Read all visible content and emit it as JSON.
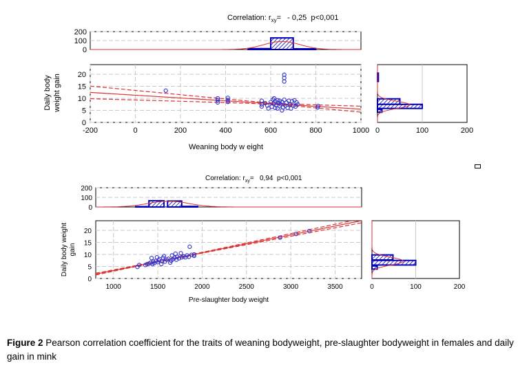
{
  "chart_data": [
    {
      "type": "scatter",
      "title": {
        "prefix": "Correlation: r",
        "sub": "xy",
        "suffix": "=   - 0,25  p<0,001"
      },
      "xlabel": "Weaning body w eight",
      "ylabel": [
        "Daily body",
        "weight gain"
      ],
      "xlim": [
        -200,
        1000
      ],
      "ylim": [
        0,
        24
      ],
      "xticks": [
        "-200",
        "0",
        "200",
        "400",
        "600",
        "800",
        "1000"
      ],
      "xtick_values": [
        -200,
        0,
        200,
        400,
        600,
        800,
        1000
      ],
      "yticks": [
        "0",
        "5",
        "10",
        "15",
        "20"
      ],
      "ytick_values": [
        0,
        5,
        10,
        15,
        20
      ],
      "grid": true,
      "regression": {
        "intercept": 11.3,
        "slope": -0.0058,
        "ci_center_x": 620,
        "ci_min": 0.3,
        "ci_k": 0.00317
      },
      "points": [
        [
          135,
          13.2
        ],
        [
          365,
          10
        ],
        [
          365,
          9.2
        ],
        [
          365,
          8.3
        ],
        [
          410,
          10.2
        ],
        [
          410,
          9.3
        ],
        [
          410,
          8.5
        ],
        [
          560,
          9
        ],
        [
          560,
          7.5
        ],
        [
          560,
          6.6
        ],
        [
          575,
          8
        ],
        [
          585,
          7
        ],
        [
          590,
          5.8
        ],
        [
          600,
          8.4
        ],
        [
          605,
          6.5
        ],
        [
          610,
          9.5
        ],
        [
          615,
          10
        ],
        [
          615,
          7.8
        ],
        [
          620,
          6
        ],
        [
          620,
          8.8
        ],
        [
          625,
          7.2
        ],
        [
          630,
          9.2
        ],
        [
          630,
          5.8
        ],
        [
          635,
          8
        ],
        [
          640,
          6.8
        ],
        [
          640,
          9
        ],
        [
          645,
          7.5
        ],
        [
          650,
          5
        ],
        [
          650,
          8.5
        ],
        [
          655,
          6.2
        ],
        [
          660,
          9.4
        ],
        [
          660,
          17
        ],
        [
          660,
          18.5
        ],
        [
          660,
          19.8
        ],
        [
          665,
          7
        ],
        [
          670,
          8.2
        ],
        [
          675,
          6
        ],
        [
          680,
          9
        ],
        [
          685,
          7.5
        ],
        [
          690,
          5.8
        ],
        [
          695,
          8.8
        ],
        [
          700,
          7
        ],
        [
          705,
          9.2
        ],
        [
          710,
          6.6
        ],
        [
          715,
          8.3
        ],
        [
          720,
          7.5
        ],
        [
          808,
          6.2
        ],
        [
          810,
          6.8
        ]
      ],
      "top_hist": {
        "ylim": [
          0,
          200
        ],
        "yticks": [
          "0",
          "100",
          "200"
        ],
        "ytick_values": [
          0,
          100,
          200
        ],
        "bins": [
          [
            500,
            600,
            10
          ],
          [
            600,
            700,
            130
          ],
          [
            700,
            800,
            8
          ]
        ],
        "curve": {
          "peak": 90,
          "mean": 650,
          "sd": 80
        }
      },
      "right_hist": {
        "xlim": [
          0,
          200
        ],
        "xticks": [
          "0",
          "100",
          "200"
        ],
        "xtick_values": [
          0,
          100,
          200
        ],
        "bins": [
          [
            17,
            20.5,
            2
          ],
          [
            7.5,
            9.8,
            50
          ],
          [
            5.8,
            7.5,
            100
          ],
          [
            4.2,
            5.4,
            10
          ]
        ],
        "curve": {
          "peak": 72,
          "mean": 7.3,
          "sd": 1.5
        }
      }
    },
    {
      "type": "scatter",
      "title": {
        "prefix": "Correlation: r",
        "sub": "xy",
        "suffix": "=   0,94  p<0,001"
      },
      "xlabel": "Pre-slaughter body weight",
      "ylabel": [
        "Daily body weight",
        "gain"
      ],
      "xlim": [
        800,
        3800
      ],
      "ylim": [
        0,
        24
      ],
      "xticks": [
        "1000",
        "1500",
        "2000",
        "2500",
        "3000",
        "3500"
      ],
      "xtick_values": [
        1000,
        1500,
        2000,
        2500,
        3000,
        3500
      ],
      "yticks": [
        "0",
        "5",
        "10",
        "15",
        "20"
      ],
      "ytick_values": [
        0,
        5,
        10,
        15,
        20
      ],
      "grid": true,
      "regression": {
        "intercept": -4.1,
        "slope": 0.0074,
        "ci_center_x": 1650,
        "ci_min": 0.12,
        "ci_k": 0.0004
      },
      "points": [
        [
          1270,
          4.8
        ],
        [
          1290,
          5.6
        ],
        [
          1360,
          5.6
        ],
        [
          1380,
          6
        ],
        [
          1400,
          6.2
        ],
        [
          1420,
          6.6
        ],
        [
          1430,
          8.5
        ],
        [
          1440,
          6
        ],
        [
          1450,
          7
        ],
        [
          1460,
          6.4
        ],
        [
          1480,
          7.3
        ],
        [
          1490,
          8.8
        ],
        [
          1500,
          6.8
        ],
        [
          1510,
          7.6
        ],
        [
          1520,
          8.1
        ],
        [
          1540,
          6
        ],
        [
          1550,
          7.2
        ],
        [
          1560,
          8.6
        ],
        [
          1570,
          9.3
        ],
        [
          1580,
          7
        ],
        [
          1600,
          7.8
        ],
        [
          1620,
          8.2
        ],
        [
          1640,
          6.6
        ],
        [
          1650,
          7.4
        ],
        [
          1660,
          9.6
        ],
        [
          1670,
          8
        ],
        [
          1690,
          8.6
        ],
        [
          1700,
          10.3
        ],
        [
          1710,
          7.8
        ],
        [
          1720,
          9
        ],
        [
          1740,
          8.4
        ],
        [
          1760,
          10.5
        ],
        [
          1770,
          8.8
        ],
        [
          1790,
          9.2
        ],
        [
          1810,
          8.8
        ],
        [
          1830,
          9.6
        ],
        [
          1850,
          9
        ],
        [
          1860,
          13.2
        ],
        [
          1880,
          9.8
        ],
        [
          1910,
          9.4
        ],
        [
          1910,
          10
        ],
        [
          2880,
          17
        ],
        [
          3060,
          18.5
        ],
        [
          3210,
          19.7
        ]
      ],
      "top_hist": {
        "ylim": [
          0,
          200
        ],
        "yticks": [
          "0",
          "100",
          "200"
        ],
        "ytick_values": [
          0,
          100,
          200
        ],
        "bins": [
          [
            1250,
            1400,
            4
          ],
          [
            1400,
            1570,
            65
          ],
          [
            1610,
            1770,
            62
          ],
          [
            1780,
            1950,
            6
          ]
        ],
        "curve": {
          "peak": 60,
          "mean": 1620,
          "sd": 230
        }
      },
      "right_hist": {
        "xlim": [
          0,
          200
        ],
        "xticks": [
          "0",
          "100",
          "200"
        ],
        "xtick_values": [
          0,
          100,
          200
        ],
        "bins": [
          [
            7.7,
            9.8,
            48
          ],
          [
            5.6,
            7.5,
            100
          ],
          [
            3.9,
            5.2,
            12
          ]
        ],
        "curve": {
          "peak": 72,
          "mean": 7.2,
          "sd": 1.6
        }
      }
    }
  ],
  "caption": {
    "label": "Figure 2",
    "text": " Pearson correlation coefficient for the traits of weaning bodyweight, pre-slaughter bodyweight in females and daily gain in mink"
  },
  "colors": {
    "points": "#3333cc",
    "line": "#e03030",
    "bars": "#0000bb",
    "grid": "#c8c8c8"
  }
}
